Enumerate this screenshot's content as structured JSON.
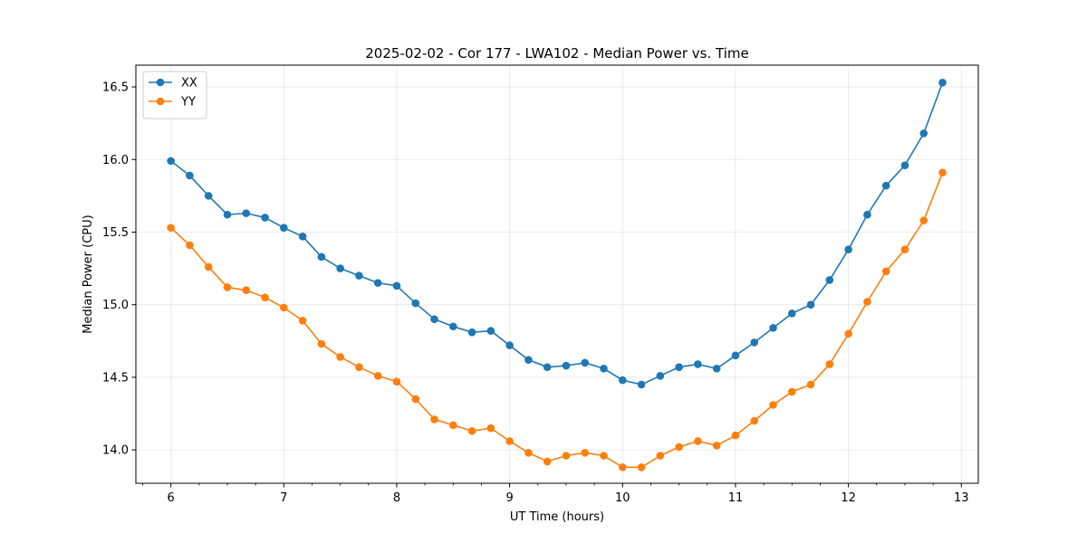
{
  "chart_data": {
    "type": "line",
    "title": "2025-02-02 - Cor 177 - LWA102 - Median Power vs. Time",
    "xlabel": "UT Time (hours)",
    "ylabel": "Median Power (CPU)",
    "xlim": [
      5.69,
      13.15
    ],
    "ylim": [
      13.77,
      16.65
    ],
    "grid": true,
    "legend_position": "top-left",
    "x_ticks": [
      6,
      7,
      8,
      9,
      10,
      11,
      12,
      13
    ],
    "x_tick_labels": [
      "6",
      "7",
      "8",
      "9",
      "10",
      "11",
      "12",
      "13"
    ],
    "y_ticks": [
      14.0,
      14.5,
      15.0,
      15.5,
      16.0,
      16.5
    ],
    "y_tick_labels": [
      "14.0",
      "14.5",
      "15.0",
      "15.5",
      "16.0",
      "16.5"
    ],
    "x": [
      6.0,
      6.1667,
      6.3333,
      6.5,
      6.6667,
      6.8333,
      7.0,
      7.1667,
      7.3333,
      7.5,
      7.6667,
      7.8333,
      8.0,
      8.1667,
      8.3333,
      8.5,
      8.6667,
      8.8333,
      9.0,
      9.1667,
      9.3333,
      9.5,
      9.6667,
      9.8333,
      10.0,
      10.1667,
      10.3333,
      10.5,
      10.6667,
      10.8333,
      11.0,
      11.1667,
      11.3333,
      11.5,
      11.6667,
      11.8333,
      12.0,
      12.1667,
      12.3333,
      12.5,
      12.6667,
      12.8333
    ],
    "series": [
      {
        "name": "XX",
        "color": "#1f77b4",
        "values": [
          15.99,
          15.89,
          15.75,
          15.62,
          15.63,
          15.6,
          15.53,
          15.47,
          15.33,
          15.25,
          15.2,
          15.15,
          15.13,
          15.01,
          14.9,
          14.85,
          14.81,
          14.82,
          14.72,
          14.62,
          14.57,
          14.58,
          14.6,
          14.56,
          14.48,
          14.45,
          14.51,
          14.57,
          14.59,
          14.56,
          14.65,
          14.74,
          14.84,
          14.94,
          15.0,
          15.17,
          15.38,
          15.62,
          15.82,
          15.96,
          16.18,
          16.53
        ]
      },
      {
        "name": "YY",
        "color": "#ff7f0e",
        "values": [
          15.53,
          15.41,
          15.26,
          15.12,
          15.1,
          15.05,
          14.98,
          14.89,
          14.73,
          14.64,
          14.57,
          14.51,
          14.47,
          14.35,
          14.21,
          14.17,
          14.13,
          14.15,
          14.06,
          13.98,
          13.92,
          13.96,
          13.98,
          13.96,
          13.88,
          13.88,
          13.96,
          14.02,
          14.06,
          14.03,
          14.1,
          14.2,
          14.31,
          14.4,
          14.45,
          14.59,
          14.8,
          15.02,
          15.23,
          15.38,
          15.58,
          15.91
        ]
      }
    ]
  }
}
